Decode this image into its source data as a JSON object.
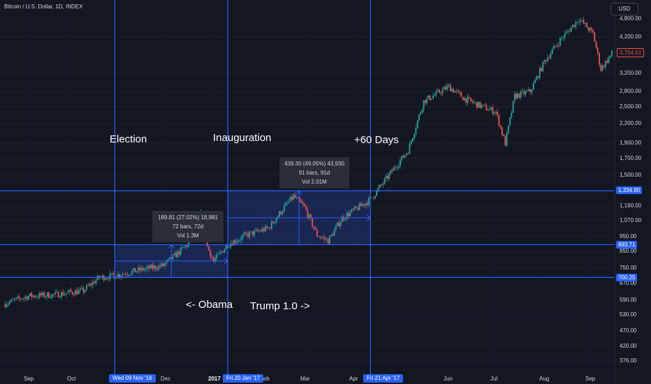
{
  "header": {
    "title": "Bitcoin / U.S. Dollar, 1D, INDEX",
    "currency": "USD"
  },
  "annotations": {
    "election": "Election",
    "inauguration": "Inauguration",
    "plus60": "+60 Days",
    "obama": "<- Obama",
    "trump": "Trump 1.0 ->"
  },
  "measure1": {
    "line1": "189.81 (27.02%) 18,981",
    "line2": "72 bars, 72d",
    "line3": "Vol 1.3M"
  },
  "measure2": {
    "line1": "439.30 (49.05%) 43,930",
    "line2": "91 bars, 91d",
    "line3": "Vol 2.01M"
  },
  "price_tags": {
    "last": "3,704.61",
    "level_high": "1,334.90",
    "level_mid": "893.71",
    "level_low": "700.25"
  },
  "date_tags": {
    "election": "Wed 09 Nov '16",
    "inauguration": "Fri 20 Jan '17",
    "plus60": "Fri 21 Apr '17"
  },
  "colors": {
    "background": "#131722",
    "up": "#26a69a",
    "down": "#ef5350",
    "line": "#2962ff",
    "zone": "#1e3a8a"
  },
  "chart_data": {
    "type": "candlestick",
    "title": "Bitcoin / U.S. Dollar, 1D, INDEX",
    "y_scale": "log",
    "ylim": [
      350,
      5000
    ],
    "y_ticks": [
      "4,800.00",
      "4,200.00",
      "3,200.00",
      "2,800.00",
      "2,500.00",
      "2,200.00",
      "1,900.00",
      "1,700.00",
      "1,500.00",
      "1,190.00",
      "1,070.00",
      "950.00",
      "850.00",
      "750.00",
      "670.00",
      "590.00",
      "530.00",
      "470.00",
      "420.00",
      "376.00"
    ],
    "y_tick_values": [
      4800,
      4200,
      3200,
      2800,
      2500,
      2200,
      1900,
      1700,
      1500,
      1190,
      1070,
      950,
      850,
      750,
      670,
      590,
      530,
      470,
      420,
      376
    ],
    "x_labels": [
      "Sep",
      "Oct",
      "Dec",
      "2017",
      "Feb",
      "Mar",
      "Apr",
      "Jun",
      "Jul",
      "Aug",
      "Sep"
    ],
    "x_range": [
      "2016-08-30",
      "2017-09-22"
    ],
    "vertical_markers": [
      "2016-11-09",
      "2017-01-20",
      "2017-04-21"
    ],
    "horizontal_levels": [
      1334.9,
      893.71,
      700.25
    ],
    "price_path": [
      [
        "2016-08-30",
        575
      ],
      [
        "2016-09-15",
        610
      ],
      [
        "2016-10-01",
        615
      ],
      [
        "2016-10-20",
        635
      ],
      [
        "2016-10-30",
        700
      ],
      [
        "2016-11-09",
        710
      ],
      [
        "2016-11-25",
        740
      ],
      [
        "2016-12-10",
        765
      ],
      [
        "2016-12-25",
        890
      ],
      [
        "2017-01-04",
        1140
      ],
      [
        "2017-01-07",
        880
      ],
      [
        "2017-01-11",
        790
      ],
      [
        "2017-01-20",
        895
      ],
      [
        "2017-02-01",
        960
      ],
      [
        "2017-02-15",
        1010
      ],
      [
        "2017-02-25",
        1180
      ],
      [
        "2017-03-03",
        1280
      ],
      [
        "2017-03-10",
        1180
      ],
      [
        "2017-03-18",
        960
      ],
      [
        "2017-03-25",
        920
      ],
      [
        "2017-04-03",
        1090
      ],
      [
        "2017-04-21",
        1250
      ],
      [
        "2017-05-05",
        1550
      ],
      [
        "2017-05-15",
        1800
      ],
      [
        "2017-05-25",
        2600
      ],
      [
        "2017-06-10",
        2900
      ],
      [
        "2017-06-20",
        2650
      ],
      [
        "2017-07-01",
        2500
      ],
      [
        "2017-07-10",
        2400
      ],
      [
        "2017-07-16",
        1900
      ],
      [
        "2017-07-22",
        2700
      ],
      [
        "2017-08-01",
        2800
      ],
      [
        "2017-08-10",
        3500
      ],
      [
        "2017-08-20",
        4100
      ],
      [
        "2017-09-01",
        4800
      ],
      [
        "2017-09-10",
        4300
      ],
      [
        "2017-09-15",
        3300
      ],
      [
        "2017-09-22",
        3705
      ]
    ],
    "measurements": [
      {
        "from": "2016-11-09",
        "to": "2017-01-20",
        "change": "189.81 (27.02%) 18,981",
        "bars": "72 bars, 72d",
        "volume": "Vol 1.3M"
      },
      {
        "from": "2017-01-20",
        "to": "2017-04-21",
        "change": "439.30 (49.05%) 43,930",
        "bars": "91 bars, 91d",
        "volume": "Vol 2.01M"
      }
    ],
    "last_price": 3704.61
  }
}
